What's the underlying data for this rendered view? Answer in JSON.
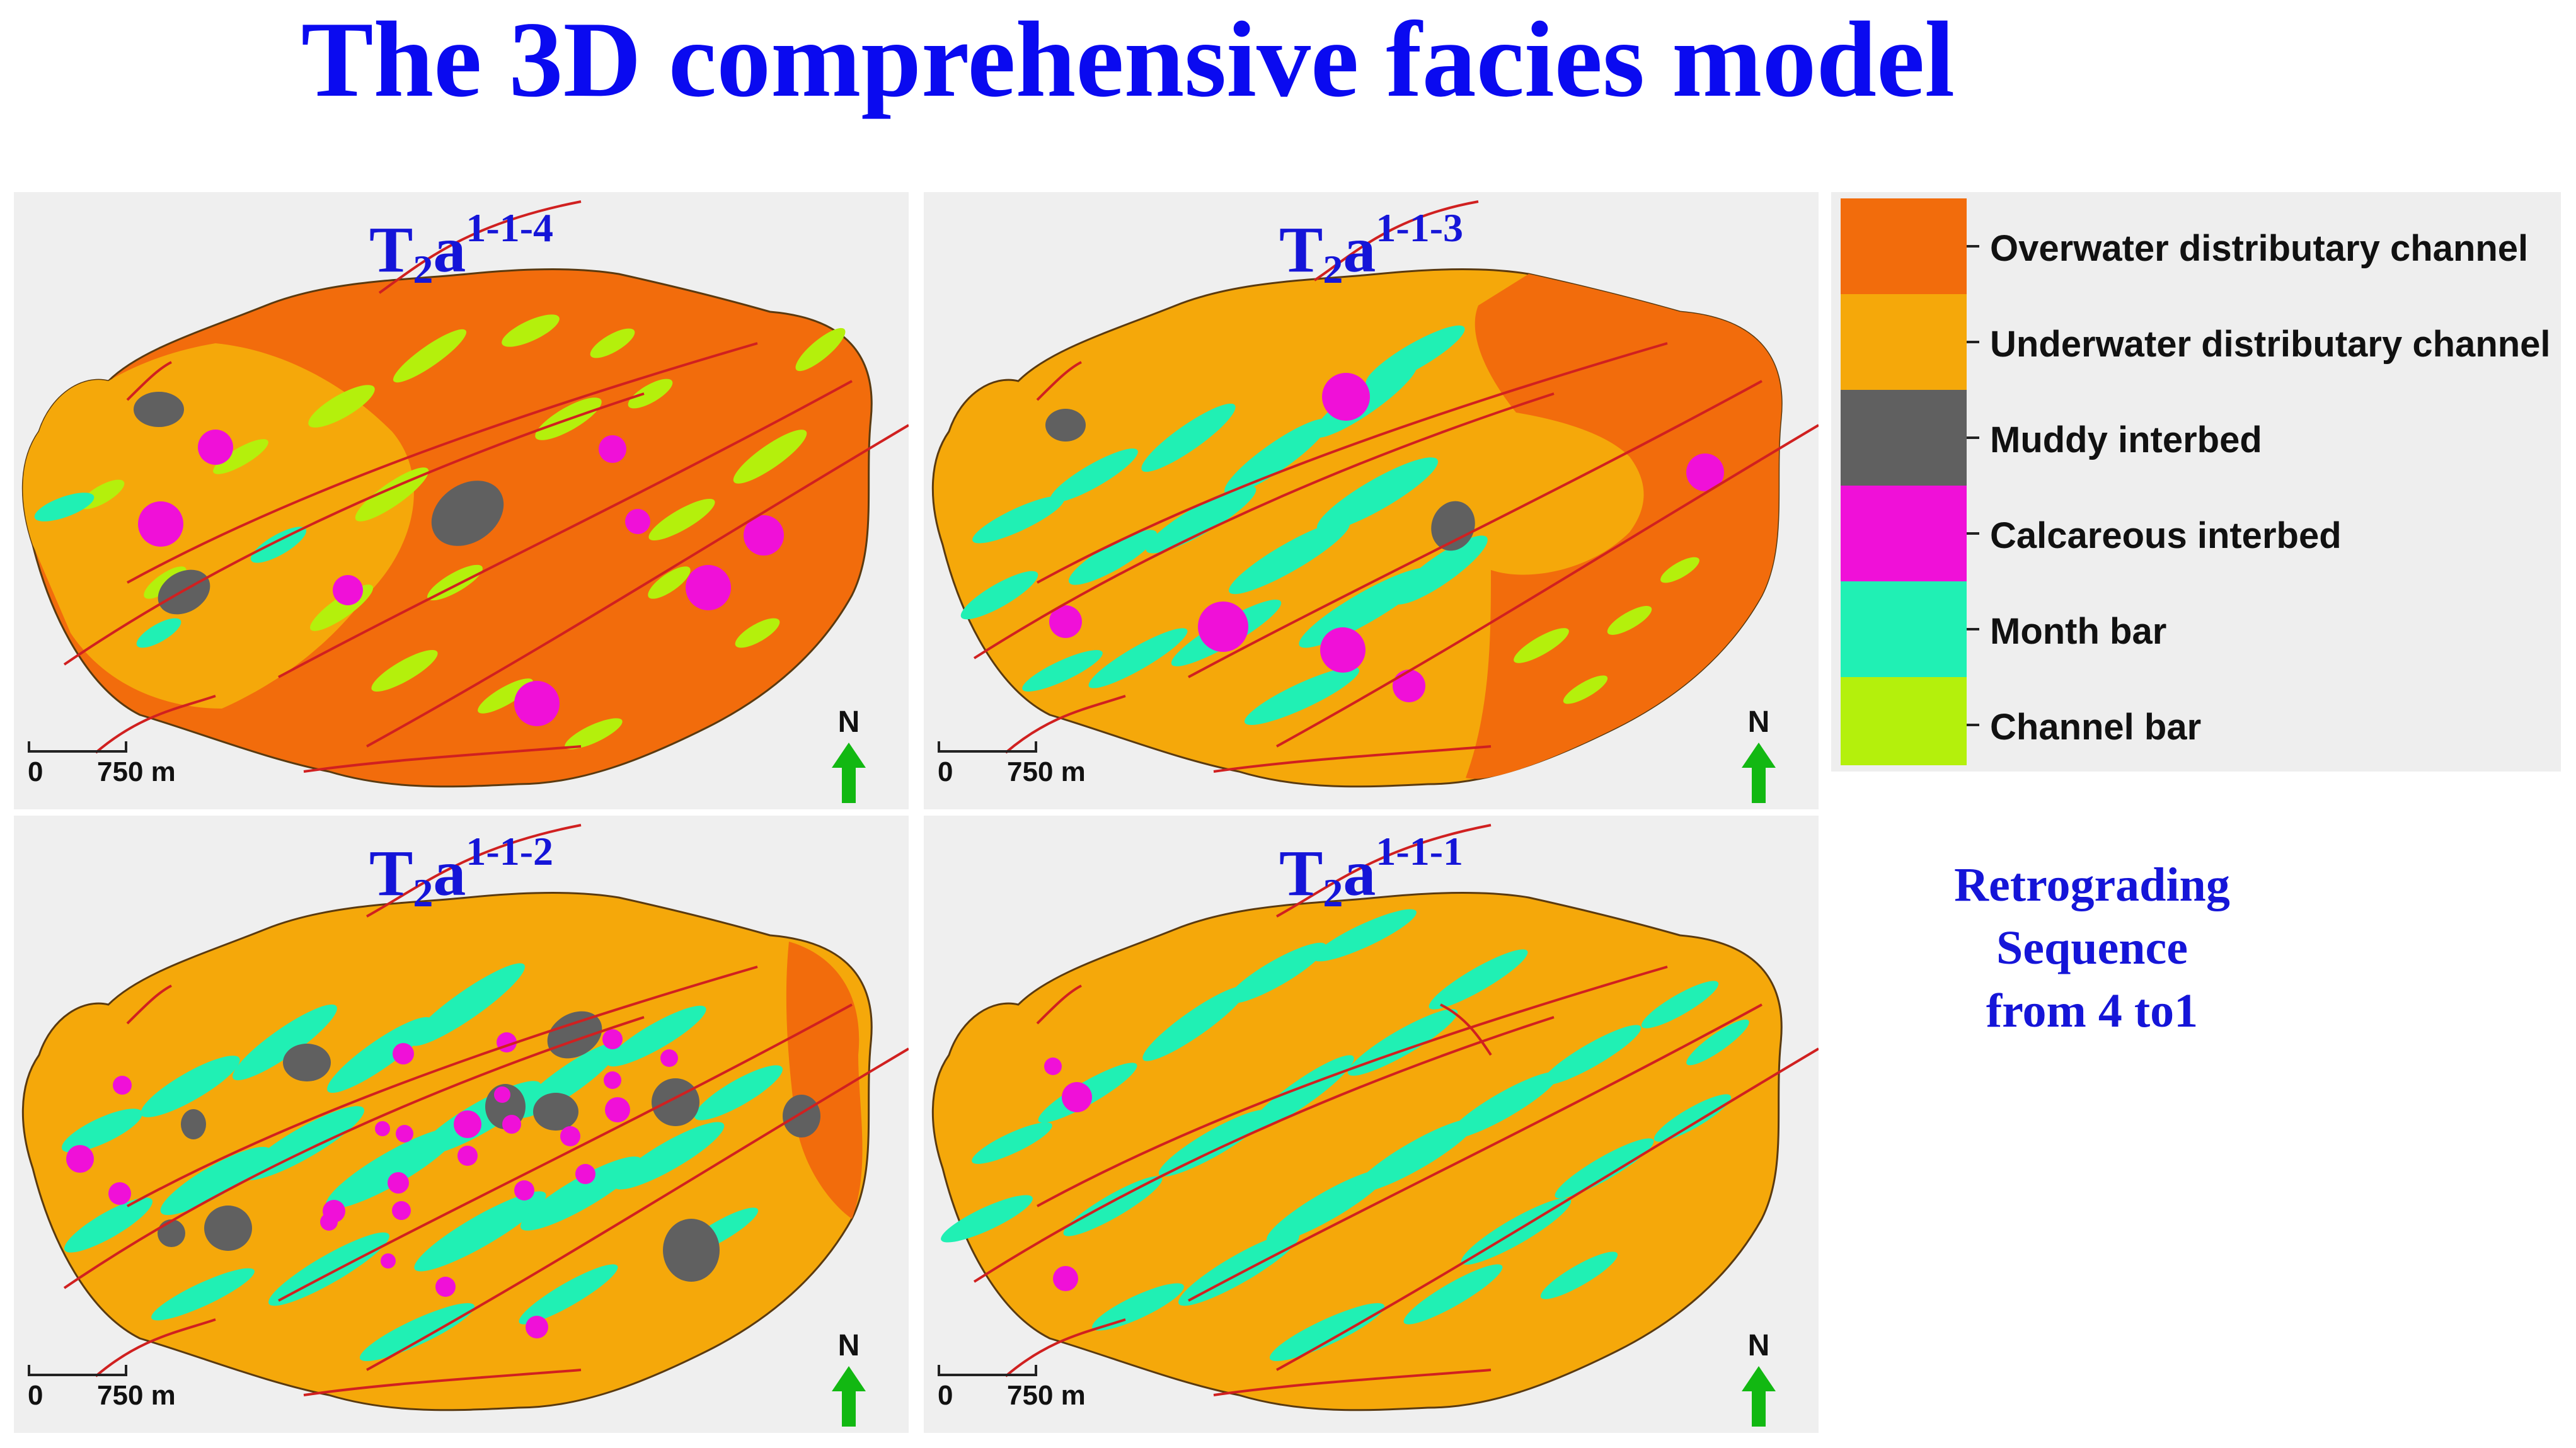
{
  "title": "The 3D comprehensive facies model",
  "panels": [
    {
      "base": "T",
      "sub": "2",
      "mid": "a",
      "sup": "1-1-4",
      "scale_zero": "0",
      "scale_distance": "750 m",
      "north": "N"
    },
    {
      "base": "T",
      "sub": "2",
      "mid": "a",
      "sup": "1-1-3",
      "scale_zero": "0",
      "scale_distance": "750 m",
      "north": "N"
    },
    {
      "base": "T",
      "sub": "2",
      "mid": "a",
      "sup": "1-1-2",
      "scale_zero": "0",
      "scale_distance": "750 m",
      "north": "N"
    },
    {
      "base": "T",
      "sub": "2",
      "mid": "a",
      "sup": "1-1-1",
      "scale_zero": "0",
      "scale_distance": "750 m",
      "north": "N"
    }
  ],
  "legend": [
    {
      "label": "Overwater distributary channel",
      "color": "#f26c0c"
    },
    {
      "label": "Underwater distributary channel",
      "color": "#f5a80a"
    },
    {
      "label": "Muddy interbed",
      "color": "#606060"
    },
    {
      "label": "Calcareous interbed",
      "color": "#f010d8"
    },
    {
      "label": "Month bar",
      "color": "#20f0b4"
    },
    {
      "label": "Channel bar",
      "color": "#b4f00c"
    }
  ],
  "note": [
    "Retrograding",
    "Sequence",
    "from 4 to1"
  ],
  "colors": {
    "title": "#0a0af0",
    "panel_label": "#1515d8",
    "fault": "#d02020",
    "north_arrow": "#12b812",
    "outline": "#5a3a10"
  }
}
